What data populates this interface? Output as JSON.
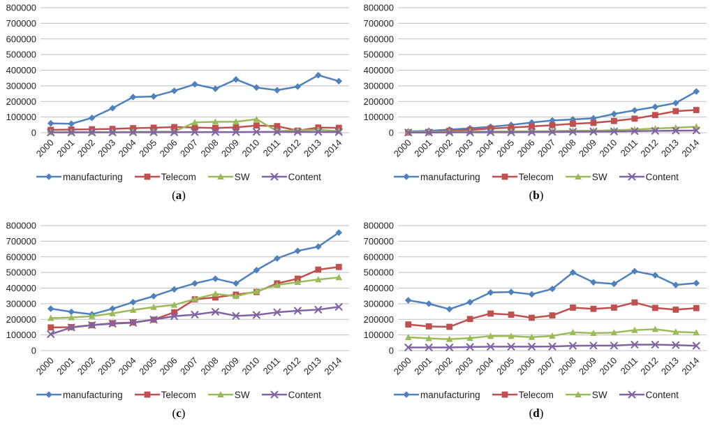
{
  "style": {
    "grid_color": "#BFBFBF",
    "text_color": "#1f1f1f",
    "background": "#ffffff",
    "series_colors": {
      "manufacturing": "#4F81BD",
      "telecom": "#C0504D",
      "sw": "#9BBB59",
      "content": "#8064A2"
    }
  },
  "chart_data": [
    {
      "type": "line",
      "caption": {
        "open": "(",
        "letter": "a",
        "close": ")"
      },
      "title": "",
      "xlabel": "",
      "ylabel": "",
      "grid": true,
      "legend_position": "bottom",
      "ylim": [
        0,
        800000
      ],
      "yticks": [
        0,
        100000,
        200000,
        300000,
        400000,
        500000,
        600000,
        700000,
        800000
      ],
      "categories": [
        "2000",
        "2001",
        "2002",
        "2003",
        "2004",
        "2005",
        "2006",
        "2007",
        "2008",
        "2009",
        "2010",
        "2011",
        "2012",
        "2013",
        "2014"
      ],
      "series": [
        {
          "name": "manufacturing",
          "color": "#4F81BD",
          "marker": "diamond",
          "values": [
            60000,
            57000,
            95000,
            157000,
            228000,
            232000,
            268000,
            310000,
            281000,
            341000,
            289000,
            272000,
            295000,
            368000,
            330000
          ]
        },
        {
          "name": "Telecom",
          "color": "#C0504D",
          "marker": "square",
          "values": [
            18000,
            20000,
            22000,
            24000,
            29000,
            32000,
            36000,
            33000,
            30000,
            34000,
            46000,
            42000,
            13000,
            33000,
            31000
          ]
        },
        {
          "name": "SW",
          "color": "#9BBB59",
          "marker": "triangle",
          "values": [
            2000,
            3000,
            3000,
            4000,
            5000,
            6000,
            7000,
            66000,
            70000,
            70000,
            86000,
            10000,
            15000,
            19000,
            10000
          ]
        },
        {
          "name": "Content",
          "color": "#8064A2",
          "marker": "x",
          "values": [
            2000,
            2000,
            2000,
            2000,
            3000,
            3000,
            3000,
            4000,
            4000,
            4000,
            5000,
            5000,
            5000,
            5000,
            4000
          ]
        }
      ]
    },
    {
      "type": "line",
      "caption": {
        "open": "(",
        "letter": "b",
        "close": ")"
      },
      "title": "",
      "xlabel": "",
      "ylabel": "",
      "grid": true,
      "legend_position": "bottom",
      "ylim": [
        0,
        800000
      ],
      "yticks": [
        0,
        100000,
        200000,
        300000,
        400000,
        500000,
        600000,
        700000,
        800000
      ],
      "categories": [
        "2000",
        "2001",
        "2002",
        "2003",
        "2004",
        "2005",
        "2006",
        "2007",
        "2008",
        "2009",
        "2010",
        "2011",
        "2012",
        "2013",
        "2014"
      ],
      "series": [
        {
          "name": "manufacturing",
          "color": "#4F81BD",
          "marker": "diamond",
          "values": [
            8000,
            12000,
            20000,
            28000,
            38000,
            50000,
            65000,
            78000,
            85000,
            92000,
            120000,
            143000,
            165000,
            190000,
            264000
          ]
        },
        {
          "name": "Telecom",
          "color": "#C0504D",
          "marker": "square",
          "values": [
            1000,
            3000,
            12000,
            18000,
            27000,
            33000,
            40000,
            48000,
            57000,
            63000,
            75000,
            90000,
            113000,
            138000,
            145000
          ]
        },
        {
          "name": "SW",
          "color": "#9BBB59",
          "marker": "triangle",
          "values": [
            5000,
            5000,
            6000,
            7000,
            8000,
            9000,
            9000,
            10000,
            13000,
            13000,
            16000,
            20000,
            27000,
            32000,
            38000
          ]
        },
        {
          "name": "Content",
          "color": "#8064A2",
          "marker": "x",
          "values": [
            1000,
            1000,
            2000,
            2000,
            3000,
            3000,
            4000,
            5000,
            6000,
            7000,
            8000,
            10000,
            12000,
            13000,
            14000
          ]
        }
      ]
    },
    {
      "type": "line",
      "caption": {
        "open": "(",
        "letter": "c",
        "close": ")"
      },
      "title": "",
      "xlabel": "",
      "ylabel": "",
      "grid": true,
      "legend_position": "bottom",
      "ylim": [
        0,
        800000
      ],
      "yticks": [
        0,
        100000,
        200000,
        300000,
        400000,
        500000,
        600000,
        700000,
        800000
      ],
      "categories": [
        "2000",
        "2001",
        "2002",
        "2003",
        "2004",
        "2005",
        "2006",
        "2007",
        "2008",
        "2009",
        "2010",
        "2011",
        "2012",
        "2013",
        "2014"
      ],
      "series": [
        {
          "name": "manufacturing",
          "color": "#4F81BD",
          "marker": "diamond",
          "values": [
            268000,
            248000,
            232000,
            268000,
            310000,
            348000,
            392000,
            430000,
            460000,
            430000,
            515000,
            590000,
            638000,
            665000,
            755000
          ]
        },
        {
          "name": "Telecom",
          "color": "#C0504D",
          "marker": "square",
          "values": [
            148000,
            150000,
            163000,
            175000,
            180000,
            198000,
            245000,
            328000,
            340000,
            358000,
            375000,
            430000,
            460000,
            518000,
            535000
          ]
        },
        {
          "name": "SW",
          "color": "#9BBB59",
          "marker": "triangle",
          "values": [
            208000,
            212000,
            220000,
            238000,
            260000,
            278000,
            292000,
            330000,
            363000,
            348000,
            380000,
            420000,
            438000,
            455000,
            468000
          ]
        },
        {
          "name": "Content",
          "color": "#8064A2",
          "marker": "x",
          "values": [
            105000,
            148000,
            163000,
            172000,
            178000,
            198000,
            220000,
            230000,
            248000,
            222000,
            228000,
            245000,
            255000,
            262000,
            280000
          ]
        }
      ]
    },
    {
      "type": "line",
      "caption": {
        "open": "(",
        "letter": "d",
        "close": ")"
      },
      "title": "",
      "xlabel": "",
      "ylabel": "",
      "grid": true,
      "legend_position": "bottom",
      "ylim": [
        0,
        800000
      ],
      "yticks": [
        0,
        100000,
        200000,
        300000,
        400000,
        500000,
        600000,
        700000,
        800000
      ],
      "categories": [
        "2000",
        "2001",
        "2002",
        "2003",
        "2004",
        "2005",
        "2006",
        "2007",
        "2008",
        "2009",
        "2010",
        "2011",
        "2012",
        "2013",
        "2014"
      ],
      "series": [
        {
          "name": "manufacturing",
          "color": "#4F81BD",
          "marker": "diamond",
          "values": [
            322000,
            300000,
            265000,
            310000,
            372000,
            375000,
            360000,
            395000,
            500000,
            437000,
            427000,
            508000,
            482000,
            420000,
            432000
          ]
        },
        {
          "name": "Telecom",
          "color": "#C0504D",
          "marker": "square",
          "values": [
            167000,
            155000,
            152000,
            202000,
            237000,
            230000,
            210000,
            225000,
            275000,
            267000,
            275000,
            308000,
            273000,
            262000,
            272000
          ]
        },
        {
          "name": "SW",
          "color": "#9BBB59",
          "marker": "triangle",
          "values": [
            85000,
            78000,
            73000,
            80000,
            93000,
            93000,
            86000,
            94000,
            117000,
            112000,
            115000,
            131000,
            137000,
            120000,
            115000
          ]
        },
        {
          "name": "Content",
          "color": "#8064A2",
          "marker": "x",
          "values": [
            20000,
            20000,
            20000,
            23000,
            25000,
            25000,
            25000,
            26000,
            31000,
            32000,
            32000,
            38000,
            38000,
            35000,
            31000
          ]
        }
      ]
    }
  ]
}
